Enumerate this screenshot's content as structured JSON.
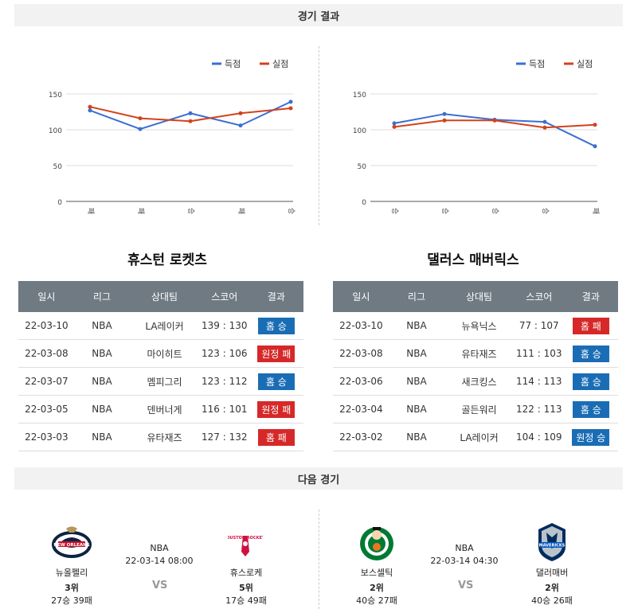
{
  "header_results": "경기 결과",
  "header_next": "다음 경기",
  "legend": {
    "score": "득점",
    "allowed": "실점"
  },
  "colors": {
    "score": "#3a6fd0",
    "allowed": "#d2421c",
    "win": "#1a6db5",
    "loss": "#d62828"
  },
  "table_headers": [
    "일시",
    "리그",
    "상대팀",
    "스코어",
    "결과"
  ],
  "teams": [
    {
      "name": "휴스턴 로켓츠",
      "games": [
        {
          "date": "22-03-10",
          "league": "NBA",
          "opponent": "LA레이커",
          "score": "139 : 130",
          "result": "홈 승",
          "win": true
        },
        {
          "date": "22-03-08",
          "league": "NBA",
          "opponent": "마이히트",
          "score": "123 : 106",
          "result": "원정 패",
          "win": false
        },
        {
          "date": "22-03-07",
          "league": "NBA",
          "opponent": "멤피그리",
          "score": "123 : 112",
          "result": "홈 승",
          "win": true
        },
        {
          "date": "22-03-05",
          "league": "NBA",
          "opponent": "덴버너게",
          "score": "116 : 101",
          "result": "원정 패",
          "win": false
        },
        {
          "date": "22-03-03",
          "league": "NBA",
          "opponent": "유타재즈",
          "score": "127 : 132",
          "result": "홈 패",
          "win": false
        }
      ]
    },
    {
      "name": "댈러스 매버릭스",
      "games": [
        {
          "date": "22-03-10",
          "league": "NBA",
          "opponent": "뉴욕닉스",
          "score": "77 : 107",
          "result": "홈 패",
          "win": false
        },
        {
          "date": "22-03-08",
          "league": "NBA",
          "opponent": "유타재즈",
          "score": "111 : 103",
          "result": "홈 승",
          "win": true
        },
        {
          "date": "22-03-06",
          "league": "NBA",
          "opponent": "새크킹스",
          "score": "114 : 113",
          "result": "홈 승",
          "win": true
        },
        {
          "date": "22-03-04",
          "league": "NBA",
          "opponent": "골든워리",
          "score": "122 : 113",
          "result": "홈 승",
          "win": true
        },
        {
          "date": "22-03-02",
          "league": "NBA",
          "opponent": "LA레이커",
          "score": "104 : 109",
          "result": "원정 승",
          "win": true
        }
      ]
    }
  ],
  "chart_data": [
    {
      "type": "line",
      "categories": [
        "패",
        "패",
        "승",
        "패",
        "승"
      ],
      "ylim": [
        0,
        150
      ],
      "yticks": [
        0,
        50,
        100,
        150
      ],
      "legend_position": "top-right",
      "grid": true,
      "series": [
        {
          "name": "득점",
          "values": [
            127,
            101,
            123,
            106,
            139
          ]
        },
        {
          "name": "실점",
          "values": [
            132,
            116,
            112,
            123,
            130
          ]
        }
      ]
    },
    {
      "type": "line",
      "categories": [
        "승",
        "승",
        "승",
        "승",
        "패"
      ],
      "ylim": [
        0,
        150
      ],
      "yticks": [
        0,
        50,
        100,
        150
      ],
      "legend_position": "top-right",
      "grid": true,
      "series": [
        {
          "name": "득점",
          "values": [
            109,
            122,
            114,
            111,
            77
          ]
        },
        {
          "name": "실점",
          "values": [
            104,
            113,
            113,
            103,
            107
          ]
        }
      ]
    }
  ],
  "next_games": [
    {
      "league": "NBA",
      "datetime": "22-03-14 08:00",
      "vs": "VS",
      "home": {
        "name": "뉴올펠리",
        "rank": "3위",
        "record": "27승 39패",
        "logo": "pelicans-logo"
      },
      "away": {
        "name": "휴스로케",
        "rank": "5위",
        "record": "17승 49패",
        "logo": "rockets-logo"
      }
    },
    {
      "league": "NBA",
      "datetime": "22-03-14 04:30",
      "vs": "VS",
      "home": {
        "name": "보스셀틱",
        "rank": "2위",
        "record": "40승 27패",
        "logo": "celtics-logo"
      },
      "away": {
        "name": "댈러매버",
        "rank": "2위",
        "record": "40승 26패",
        "logo": "mavericks-logo"
      }
    }
  ]
}
